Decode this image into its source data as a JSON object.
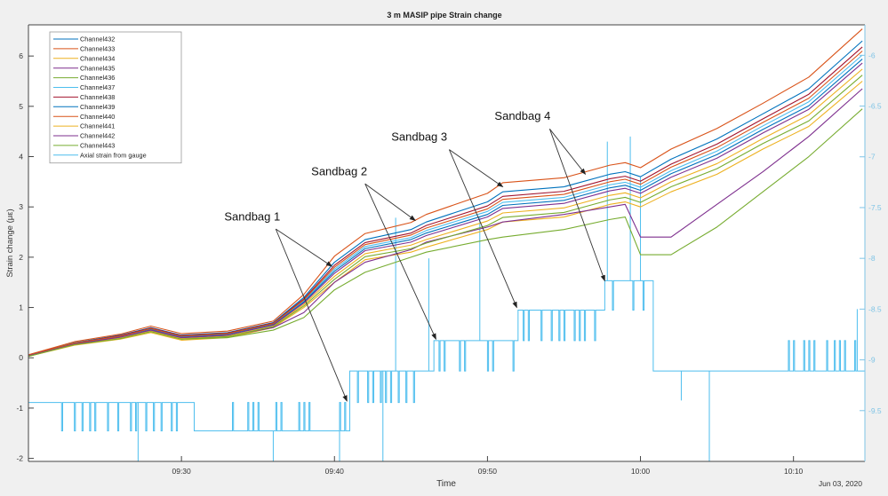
{
  "chart_data": {
    "type": "line",
    "title": "3 m MASIP pipe Strain change",
    "xlabel": "Time",
    "ylabel": "Strain change (με)",
    "date_label": "Jun 03, 2020",
    "xlim": [
      "09:20:00",
      "10:14:40"
    ],
    "x_ticks": [
      "09:30",
      "09:40",
      "09:50",
      "10:00",
      "10:10"
    ],
    "ylim_left": [
      -2.06,
      6.62
    ],
    "y_ticks_left": [
      -2,
      -1,
      0,
      1,
      2,
      3,
      4,
      5,
      6
    ],
    "ylim_right": [
      -10.0,
      -5.7
    ],
    "y_ticks_right": [
      -9.5,
      -9,
      -8.5,
      -8,
      -7.5,
      -7,
      -6.5,
      -6
    ],
    "grid": false,
    "legend_position": "top-left",
    "times": [
      "09:20",
      "09:23",
      "09:26",
      "09:28",
      "09:30",
      "09:33",
      "09:36",
      "09:38",
      "09:40",
      "09:42",
      "09:45",
      "09:46",
      "09:50",
      "09:51",
      "09:55",
      "09:58",
      "09:59",
      "10:00",
      "10:02",
      "10:05",
      "10:08",
      "10:11",
      "10:14:30"
    ],
    "series": [
      {
        "name": "Channel432",
        "color": "#0072BD",
        "axis": "left",
        "values": [
          0.05,
          0.3,
          0.45,
          0.6,
          0.45,
          0.5,
          0.7,
          1.2,
          1.9,
          2.35,
          2.55,
          2.7,
          3.1,
          3.3,
          3.4,
          3.65,
          3.7,
          3.6,
          3.95,
          4.35,
          4.85,
          5.35,
          6.3
        ]
      },
      {
        "name": "Channel433",
        "color": "#D95319",
        "axis": "left",
        "values": [
          0.06,
          0.32,
          0.47,
          0.63,
          0.48,
          0.53,
          0.73,
          1.26,
          2.02,
          2.47,
          2.69,
          2.85,
          3.27,
          3.48,
          3.58,
          3.83,
          3.88,
          3.78,
          4.15,
          4.56,
          5.06,
          5.58,
          6.54
        ]
      },
      {
        "name": "Channel434",
        "color": "#EDB120",
        "axis": "left",
        "values": [
          0.03,
          0.25,
          0.37,
          0.5,
          0.35,
          0.4,
          0.6,
          1.0,
          1.5,
          1.95,
          2.1,
          2.2,
          2.55,
          2.7,
          2.8,
          3.05,
          3.1,
          3.0,
          3.3,
          3.65,
          4.15,
          4.6,
          5.5
        ]
      },
      {
        "name": "Channel435",
        "color": "#7E2F8E",
        "axis": "left",
        "values": [
          0.04,
          0.28,
          0.42,
          0.55,
          0.4,
          0.43,
          0.6,
          0.9,
          1.5,
          1.9,
          2.15,
          2.3,
          2.6,
          2.7,
          2.85,
          3.0,
          3.05,
          2.4,
          2.4,
          3.05,
          3.7,
          4.4,
          5.35
        ]
      },
      {
        "name": "Channel436",
        "color": "#77AC30",
        "axis": "left",
        "values": [
          0.03,
          0.27,
          0.4,
          0.52,
          0.37,
          0.4,
          0.55,
          0.8,
          1.35,
          1.7,
          2.0,
          2.1,
          2.35,
          2.4,
          2.55,
          2.75,
          2.8,
          2.05,
          2.05,
          2.6,
          3.3,
          4.0,
          4.95
        ]
      },
      {
        "name": "Channel437",
        "color": "#4DBEEE",
        "axis": "left",
        "values": [
          0.04,
          0.28,
          0.42,
          0.57,
          0.42,
          0.47,
          0.67,
          1.13,
          1.76,
          2.21,
          2.39,
          2.53,
          2.91,
          3.09,
          3.19,
          3.44,
          3.49,
          3.39,
          3.72,
          4.11,
          4.61,
          5.09,
          6.02
        ]
      },
      {
        "name": "Channel438",
        "color": "#A2142F",
        "axis": "left",
        "values": [
          0.05,
          0.29,
          0.44,
          0.59,
          0.44,
          0.49,
          0.69,
          1.17,
          1.84,
          2.29,
          2.48,
          2.63,
          3.02,
          3.21,
          3.31,
          3.56,
          3.61,
          3.51,
          3.85,
          4.25,
          4.75,
          5.24,
          6.18
        ]
      },
      {
        "name": "Channel439",
        "color": "#0072BD",
        "axis": "left",
        "values": [
          0.04,
          0.28,
          0.41,
          0.56,
          0.41,
          0.46,
          0.66,
          1.11,
          1.72,
          2.17,
          2.35,
          2.48,
          2.85,
          3.03,
          3.13,
          3.38,
          3.43,
          3.33,
          3.66,
          4.04,
          4.54,
          5.01,
          5.94
        ]
      },
      {
        "name": "Channel440",
        "color": "#D95319",
        "axis": "left",
        "values": [
          0.05,
          0.29,
          0.43,
          0.58,
          0.43,
          0.48,
          0.68,
          1.15,
          1.8,
          2.25,
          2.44,
          2.58,
          2.96,
          3.15,
          3.25,
          3.5,
          3.55,
          3.45,
          3.79,
          4.18,
          4.68,
          5.16,
          6.1
        ]
      },
      {
        "name": "Channel441",
        "color": "#EDB120",
        "axis": "left",
        "values": [
          0.04,
          0.27,
          0.39,
          0.53,
          0.38,
          0.43,
          0.63,
          1.06,
          1.62,
          2.07,
          2.24,
          2.35,
          2.72,
          2.88,
          2.98,
          3.23,
          3.28,
          3.18,
          3.5,
          3.86,
          4.36,
          4.83,
          5.74
        ]
      },
      {
        "name": "Channel442",
        "color": "#7E2F8E",
        "axis": "left",
        "values": [
          0.04,
          0.27,
          0.41,
          0.55,
          0.4,
          0.45,
          0.65,
          1.09,
          1.68,
          2.13,
          2.3,
          2.43,
          2.8,
          2.97,
          3.07,
          3.32,
          3.37,
          3.27,
          3.59,
          3.97,
          4.47,
          4.94,
          5.86
        ]
      },
      {
        "name": "Channel443",
        "color": "#77AC30",
        "axis": "left",
        "values": [
          0.03,
          0.26,
          0.38,
          0.52,
          0.37,
          0.42,
          0.62,
          1.03,
          1.56,
          2.01,
          2.17,
          2.28,
          2.63,
          2.79,
          2.89,
          3.14,
          3.19,
          3.09,
          3.4,
          3.76,
          4.26,
          4.71,
          5.62
        ]
      }
    ],
    "gauge": {
      "name": "Axial strain from gauge",
      "color": "#4DBEEE",
      "axis": "right",
      "segments": [
        {
          "start": "09:20:00",
          "end": "09:30:50",
          "level": -9.42,
          "flicker_level": -9.7,
          "flicker_times": [
            "09:22:10",
            "09:23:00",
            "09:23:30",
            "09:24:00",
            "09:24:20",
            "09:25:10",
            "09:25:50",
            "09:26:40",
            "09:27:00",
            "09:27:40",
            "09:28:10",
            "09:28:40",
            "09:29:20",
            "09:29:40"
          ]
        },
        {
          "start": "09:30:50",
          "end": "09:41:00",
          "level": -9.7,
          "flicker_level": -9.42,
          "flicker_times": [
            "09:33:20",
            "09:34:20",
            "09:34:40",
            "09:35:00",
            "09:36:10",
            "09:36:30",
            "09:37:40",
            "09:38:00",
            "09:38:20",
            "09:40:20",
            "09:40:40"
          ]
        },
        {
          "start": "09:41:00",
          "end": "09:46:30",
          "level": -9.11,
          "flicker_level": -9.42,
          "flicker_times": [
            "09:41:30",
            "09:42:10",
            "09:42:30",
            "09:43:00",
            "09:43:20",
            "09:43:40",
            "09:44:10",
            "09:44:40",
            "09:45:10"
          ]
        },
        {
          "start": "09:46:30",
          "end": "09:52:00",
          "level": -8.81,
          "flicker_level": -9.11,
          "flicker_times": [
            "09:46:50",
            "09:47:10",
            "09:48:10",
            "09:48:30",
            "09:50:00",
            "09:50:20",
            "09:51:40"
          ]
        },
        {
          "start": "09:52:00",
          "end": "09:57:40",
          "level": -8.51,
          "flicker_level": -8.81,
          "flicker_times": [
            "09:52:20",
            "09:52:40",
            "09:53:30",
            "09:54:10",
            "09:54:40",
            "09:55:00",
            "09:55:40",
            "09:56:00",
            "09:56:20",
            "09:57:00"
          ]
        },
        {
          "start": "09:57:40",
          "end": "10:00:50",
          "level": -8.22,
          "flicker_level": -8.51,
          "flicker_times": [
            "09:58:10",
            "09:59:30",
            "10:00:10"
          ]
        },
        {
          "start": "10:00:50",
          "end": "10:14:40",
          "level": -9.11,
          "flicker_level": -8.81,
          "flicker_times": [
            "10:09:40",
            "10:10:00",
            "10:10:40",
            "10:11:00",
            "10:11:20",
            "10:12:10",
            "10:12:40",
            "10:13:00",
            "10:13:20",
            "10:14:00"
          ]
        }
      ],
      "spikes": [
        [
          "09:27:10",
          -10.0
        ],
        [
          "09:36:00",
          -10.0
        ],
        [
          "09:40:20",
          -10.0
        ],
        [
          "09:43:10",
          -10.0
        ],
        [
          "09:44:00",
          -7.6
        ],
        [
          "09:46:10",
          -8.0
        ],
        [
          "09:49:30",
          -7.6
        ],
        [
          "09:57:50",
          -6.85
        ],
        [
          "09:59:20",
          -6.8
        ],
        [
          "10:00:00",
          -7.2
        ],
        [
          "10:02:40",
          -9.4
        ],
        [
          "10:04:30",
          -10.0
        ],
        [
          "10:14:10",
          -8.5
        ]
      ]
    },
    "annotations": [
      {
        "text": "Sandbag 1",
        "text_at": [
          "09:32:48",
          2.73
        ],
        "tail": [
          "09:36:10",
          2.56
        ],
        "heads": [
          [
            "09:39:50",
            1.82
          ],
          [
            "09:40:49",
            -0.86
          ]
        ]
      },
      {
        "text": "Sandbag 2",
        "text_at": [
          "09:38:29",
          3.63
        ],
        "tail": [
          "09:42:00",
          3.46
        ],
        "heads": [
          [
            "09:45:17",
            2.73
          ],
          [
            "09:46:38",
            0.37
          ]
        ]
      },
      {
        "text": "Sandbag 3",
        "text_at": [
          "09:43:43",
          4.32
        ],
        "tail": [
          "09:47:30",
          4.14
        ],
        "heads": [
          [
            "09:51:00",
            3.4
          ],
          [
            "09:51:55",
            1.0
          ]
        ]
      },
      {
        "text": "Sandbag 4",
        "text_at": [
          "09:50:28",
          4.73
        ],
        "tail": [
          "09:54:04",
          4.55
        ],
        "heads": [
          [
            "09:56:24",
            3.65
          ],
          [
            "09:57:40",
            1.53
          ]
        ]
      }
    ]
  }
}
